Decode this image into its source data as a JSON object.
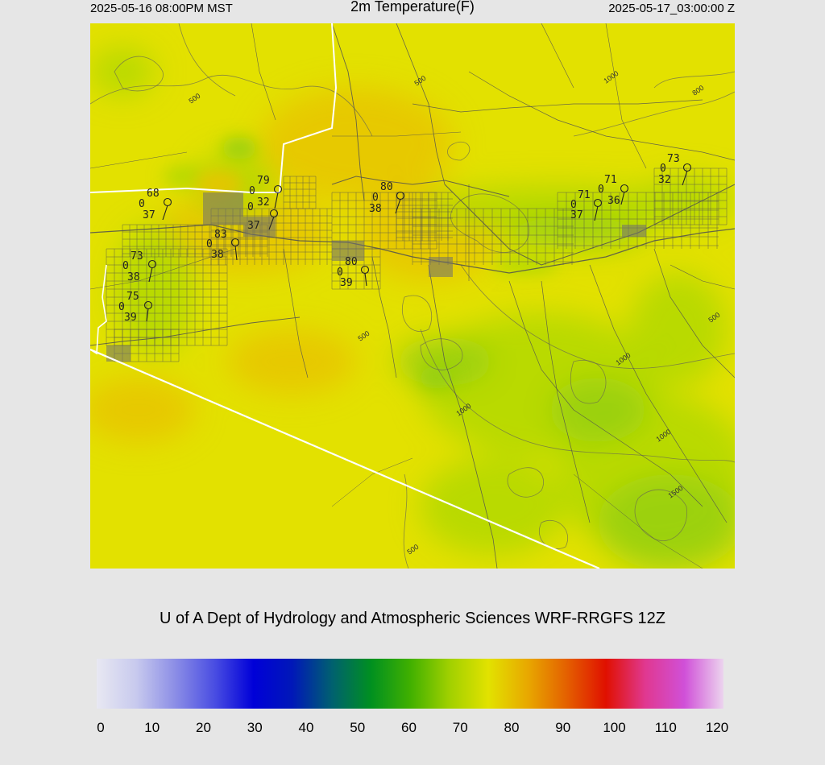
{
  "header": {
    "valid_local": "2025-05-16 08:00PM MST",
    "title": "2m Temperature(F)",
    "valid_utc": "2025-05-17_03:00:00 Z"
  },
  "credit": "U of A Dept of Hydrology and Atmospheric Sciences WRF-RRGFS 12Z",
  "colorbar": {
    "labels": [
      "0",
      "10",
      "20",
      "30",
      "40",
      "50",
      "60",
      "70",
      "80",
      "90",
      "100",
      "110",
      "120"
    ],
    "colors": [
      "#e8e8f2",
      "#c8caee",
      "#8c8ee6",
      "#4a4ee2",
      "#0000d8",
      "#0018b8",
      "#006070",
      "#009020",
      "#40b000",
      "#a0d000",
      "#e2e200",
      "#e8a800",
      "#e46000",
      "#e01000",
      "#e03890",
      "#d050d8",
      "#ecd4ee"
    ]
  },
  "map_colors": {
    "base": "#e3e100",
    "warm": "#e8c400",
    "cool": "#b2d800",
    "cooler": "#96cf0c",
    "roads": "#505050",
    "border": "#ffffff"
  },
  "stations": [
    {
      "temp": "68",
      "wind": "0",
      "dew": "37"
    },
    {
      "temp": "79",
      "wind": "0",
      "dew": "32"
    },
    {
      "temp": "0",
      "wind": "",
      "dew": "37"
    },
    {
      "temp": "83",
      "wind": "0",
      "dew": "38"
    },
    {
      "temp": "73",
      "wind": "0",
      "dew": "38"
    },
    {
      "temp": "75",
      "wind": "0",
      "dew": "39"
    },
    {
      "temp": "80",
      "wind": "0",
      "dew": "38"
    },
    {
      "temp": "80",
      "wind": "0",
      "dew": "39"
    },
    {
      "temp": "71",
      "wind": "0",
      "dew": "37"
    },
    {
      "temp": "71",
      "wind": "0",
      "dew": "36"
    },
    {
      "temp": "73",
      "wind": "0",
      "dew": "32"
    }
  ],
  "contour_labels": [
    "500",
    "500",
    "1000",
    "800",
    "500",
    "500",
    "1000",
    "1000",
    "1000",
    "1500",
    "500"
  ]
}
